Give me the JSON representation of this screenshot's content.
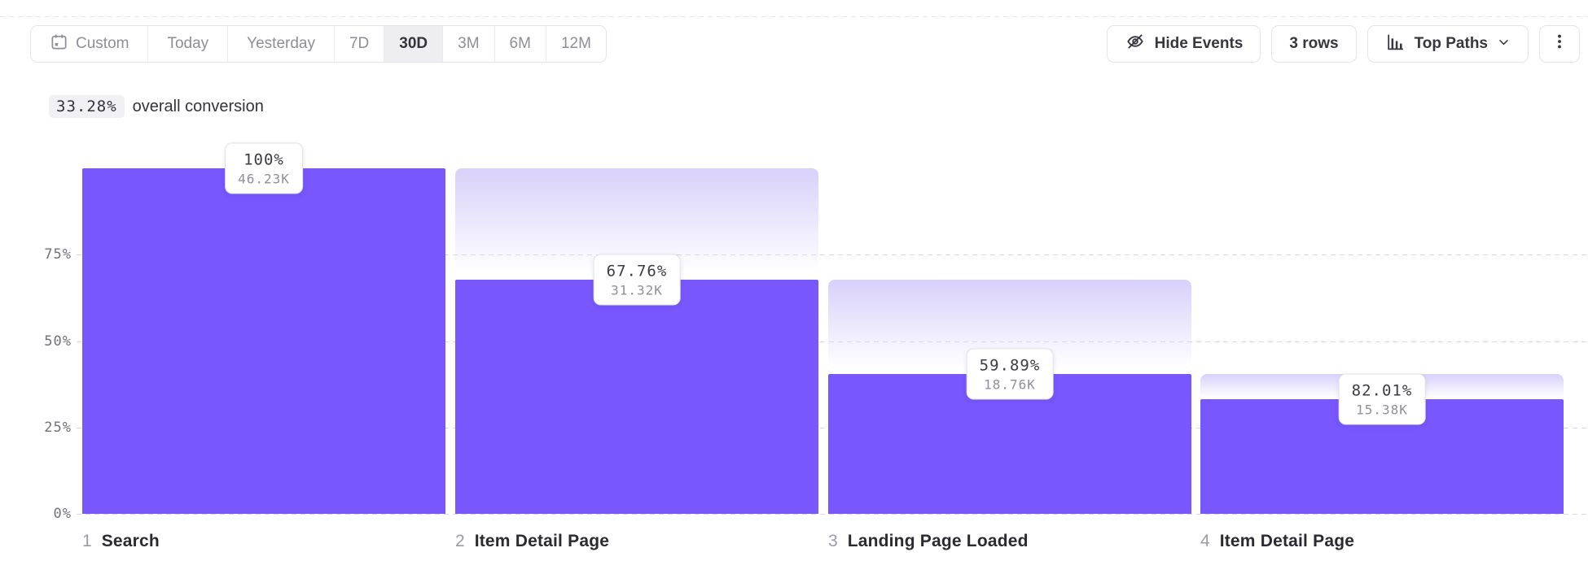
{
  "toolbar": {
    "date_picker": {
      "items": [
        {
          "label": "Custom",
          "selected": false
        },
        {
          "label": "Today",
          "selected": false
        },
        {
          "label": "Yesterday",
          "selected": false
        },
        {
          "label": "7D",
          "selected": false
        },
        {
          "label": "30D",
          "selected": true
        },
        {
          "label": "3M",
          "selected": false
        },
        {
          "label": "6M",
          "selected": false
        },
        {
          "label": "12M",
          "selected": false
        }
      ]
    },
    "hide_events_label": "Hide Events",
    "rows_label": "3 rows",
    "top_paths_label": "Top Paths"
  },
  "summary": {
    "value": "33.28%",
    "label": "overall conversion"
  },
  "chart_data": {
    "type": "bar",
    "subtype": "funnel",
    "title": "33.28% overall conversion",
    "categories": [
      "Search",
      "Item Detail Page",
      "Landing Page Loaded",
      "Item Detail Page"
    ],
    "steps": [
      {
        "index": "1",
        "name": "Search",
        "pct_label": "100%",
        "count_label": "46.23K",
        "step_conversion_pct": 100,
        "overall_pct": 100,
        "prev_overall_pct": 100
      },
      {
        "index": "2",
        "name": "Item Detail Page",
        "pct_label": "67.76%",
        "count_label": "31.32K",
        "step_conversion_pct": 67.76,
        "overall_pct": 67.76,
        "prev_overall_pct": 100
      },
      {
        "index": "3",
        "name": "Landing Page Loaded",
        "pct_label": "59.89%",
        "count_label": "18.76K",
        "step_conversion_pct": 59.89,
        "overall_pct": 40.58,
        "prev_overall_pct": 67.76
      },
      {
        "index": "4",
        "name": "Item Detail Page",
        "pct_label": "82.01%",
        "count_label": "15.38K",
        "step_conversion_pct": 82.01,
        "overall_pct": 33.28,
        "prev_overall_pct": 40.58
      }
    ],
    "y_ticks": [
      {
        "label": "75%",
        "value": 75
      },
      {
        "label": "50%",
        "value": 50
      },
      {
        "label": "25%",
        "value": 25
      },
      {
        "label": "0%",
        "value": 0
      }
    ],
    "ylim": [
      0,
      100
    ],
    "grid": "dashed-horizontal",
    "legend": "none",
    "colors": {
      "bar": "#7857ff",
      "dropoff_gradient_top": "#d8d0fa",
      "grid": "#d9d9de"
    }
  }
}
